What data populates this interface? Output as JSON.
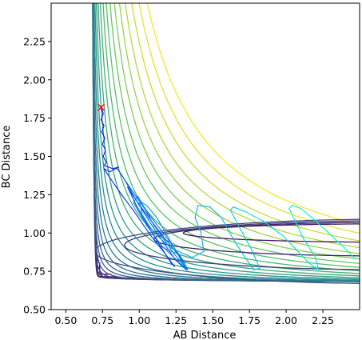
{
  "chart_data": {
    "type": "contour",
    "title": "",
    "xlabel": "AB Distance",
    "ylabel": "BC Distance",
    "xlim": [
      0.4,
      2.5
    ],
    "ylim": [
      0.5,
      2.5
    ],
    "xticks": [
      "0.50",
      "0.75",
      "1.00",
      "1.25",
      "1.50",
      "1.75",
      "2.00",
      "2.25"
    ],
    "yticks": [
      "0.50",
      "0.75",
      "1.00",
      "1.25",
      "1.50",
      "1.75",
      "2.00",
      "2.25"
    ],
    "grid": false,
    "colormap": "viridis",
    "colors": {
      "contour_low": "#440154",
      "contour_high": "#fde725",
      "traj_start": "#0000ff",
      "traj_end": "#00ffcc",
      "start_marker": "#ff0000"
    },
    "potential_well": {
      "x0": 0.74,
      "y0": 0.74,
      "curvature_x": 0.55,
      "curvature_y": 0.55,
      "outer_ring_ab_at_bc_2": 2.0
    },
    "trajectory": {
      "start": {
        "x": 0.74,
        "y": 1.82
      },
      "points": [
        [
          0.74,
          1.82
        ],
        [
          0.755,
          1.78
        ],
        [
          0.74,
          1.74
        ],
        [
          0.76,
          1.7
        ],
        [
          0.745,
          1.66
        ],
        [
          0.765,
          1.62
        ],
        [
          0.75,
          1.58
        ],
        [
          0.77,
          1.54
        ],
        [
          0.755,
          1.5
        ],
        [
          0.775,
          1.46
        ],
        [
          0.76,
          1.44
        ],
        [
          0.82,
          1.42
        ],
        [
          0.86,
          1.43
        ],
        [
          0.8,
          1.4
        ],
        [
          0.76,
          1.42
        ],
        [
          0.8,
          1.36
        ],
        [
          0.88,
          1.25
        ],
        [
          0.98,
          1.12
        ],
        [
          1.08,
          0.98
        ],
        [
          1.18,
          0.86
        ],
        [
          1.24,
          0.78
        ],
        [
          1.22,
          0.8
        ],
        [
          1.1,
          0.98
        ],
        [
          0.98,
          1.18
        ],
        [
          0.92,
          1.3
        ],
        [
          0.96,
          1.24
        ],
        [
          1.05,
          1.12
        ],
        [
          1.16,
          0.98
        ],
        [
          1.28,
          0.84
        ],
        [
          1.32,
          0.76
        ],
        [
          1.25,
          0.82
        ],
        [
          1.12,
          1.0
        ],
        [
          1.0,
          1.18
        ],
        [
          0.88,
          1.38
        ],
        [
          0.85,
          1.42
        ],
        [
          0.92,
          1.32
        ],
        [
          1.05,
          1.14
        ],
        [
          1.18,
          0.98
        ],
        [
          1.3,
          0.82
        ],
        [
          1.33,
          0.76
        ],
        [
          1.24,
          0.86
        ],
        [
          1.1,
          1.05
        ],
        [
          0.99,
          1.24
        ],
        [
          0.96,
          1.2
        ],
        [
          1.05,
          1.05
        ],
        [
          1.15,
          0.92
        ],
        [
          1.28,
          0.8
        ],
        [
          1.32,
          0.77
        ],
        [
          1.28,
          0.83
        ],
        [
          1.24,
          0.9
        ],
        [
          1.18,
          1.0
        ],
        [
          1.12,
          1.1
        ],
        [
          1.05,
          1.18
        ],
        [
          1.0,
          1.21
        ],
        [
          1.02,
          1.12
        ],
        [
          1.1,
          1.0
        ],
        [
          1.22,
          0.9
        ],
        [
          1.36,
          0.84
        ],
        [
          1.44,
          0.88
        ],
        [
          1.42,
          1.0
        ],
        [
          1.38,
          1.1
        ],
        [
          1.4,
          1.18
        ],
        [
          1.48,
          1.17
        ],
        [
          1.56,
          1.1
        ],
        [
          1.64,
          0.96
        ],
        [
          1.72,
          0.84
        ],
        [
          1.78,
          0.76
        ],
        [
          1.82,
          0.77
        ],
        [
          1.76,
          0.9
        ],
        [
          1.68,
          1.04
        ],
        [
          1.62,
          1.15
        ],
        [
          1.64,
          1.17
        ],
        [
          1.72,
          1.14
        ],
        [
          1.84,
          1.08
        ],
        [
          1.98,
          0.98
        ],
        [
          2.08,
          0.88
        ],
        [
          2.16,
          0.8
        ],
        [
          2.22,
          0.76
        ],
        [
          2.2,
          0.84
        ],
        [
          2.12,
          0.96
        ],
        [
          2.06,
          1.08
        ],
        [
          2.02,
          1.16
        ],
        [
          2.04,
          1.18
        ],
        [
          2.1,
          1.16
        ],
        [
          2.2,
          1.08
        ],
        [
          2.3,
          0.99
        ],
        [
          2.4,
          0.9
        ],
        [
          2.47,
          0.83
        ]
      ]
    }
  }
}
